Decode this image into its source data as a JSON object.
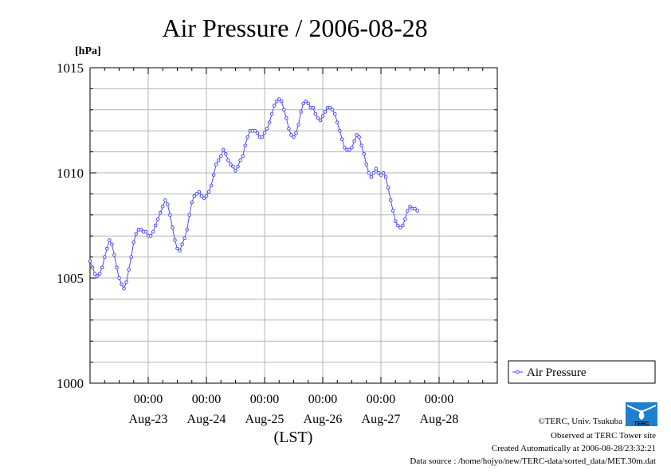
{
  "title": "Air Pressure / 2006-08-28",
  "unit_label": "[hPa]",
  "xaxis_caption": "(LST)",
  "x_time_label": "00:00",
  "legend_label": "Air Pressure",
  "credits": {
    "copyright": "©TERC, Univ. Tsukuba",
    "observed": "Observed at TERC Tower site",
    "created": "Created Automatically at 2006-08-28/23:32:21",
    "source": "Data source : /home/hojyo/new/TERC-data/sorted_data/MET.30m.dat"
  },
  "logo": {
    "text": "TERC",
    "color": "#1e7fd0"
  },
  "colors": {
    "series": "#4b4bff",
    "grid": "#b4b4b4",
    "frame": "#000000"
  },
  "chart_data": {
    "type": "line",
    "title": "Air Pressure / 2006-08-28",
    "xlabel": "(LST)",
    "ylabel": "[hPa]",
    "ylim": [
      1000,
      1015
    ],
    "yticks": [
      1000,
      1005,
      1010,
      1015
    ],
    "xlim": [
      "2006-08-22 00:00",
      "2006-08-29 00:00"
    ],
    "x_date_labels": [
      "Aug-23",
      "Aug-24",
      "Aug-25",
      "Aug-26",
      "Aug-27",
      "Aug-28"
    ],
    "grid": true,
    "legend": "right",
    "series": [
      {
        "name": "Air Pressure",
        "marker": "circle",
        "points": [
          [
            "2006-08-22 00:00",
            1005.8
          ],
          [
            "2006-08-22 01:00",
            1005.5
          ],
          [
            "2006-08-22 02:00",
            1005.2
          ],
          [
            "2006-08-22 03:00",
            1005.1
          ],
          [
            "2006-08-22 04:00",
            1005.2
          ],
          [
            "2006-08-22 05:00",
            1005.5
          ],
          [
            "2006-08-22 06:00",
            1006.0
          ],
          [
            "2006-08-22 07:00",
            1006.4
          ],
          [
            "2006-08-22 08:00",
            1006.8
          ],
          [
            "2006-08-22 09:00",
            1006.6
          ],
          [
            "2006-08-22 10:00",
            1006.1
          ],
          [
            "2006-08-22 11:00",
            1005.5
          ],
          [
            "2006-08-22 12:00",
            1005.0
          ],
          [
            "2006-08-22 13:00",
            1004.7
          ],
          [
            "2006-08-22 14:00",
            1004.5
          ],
          [
            "2006-08-22 15:00",
            1004.8
          ],
          [
            "2006-08-22 16:00",
            1005.4
          ],
          [
            "2006-08-22 17:00",
            1006.0
          ],
          [
            "2006-08-22 18:00",
            1006.7
          ],
          [
            "2006-08-22 19:00",
            1007.1
          ],
          [
            "2006-08-22 20:00",
            1007.3
          ],
          [
            "2006-08-22 21:00",
            1007.3
          ],
          [
            "2006-08-22 22:00",
            1007.2
          ],
          [
            "2006-08-22 23:00",
            1007.2
          ],
          [
            "2006-08-23 00:00",
            1007.0
          ],
          [
            "2006-08-23 01:00",
            1007.0
          ],
          [
            "2006-08-23 02:00",
            1007.2
          ],
          [
            "2006-08-23 03:00",
            1007.5
          ],
          [
            "2006-08-23 04:00",
            1007.8
          ],
          [
            "2006-08-23 05:00",
            1008.1
          ],
          [
            "2006-08-23 06:00",
            1008.4
          ],
          [
            "2006-08-23 07:00",
            1008.7
          ],
          [
            "2006-08-23 08:00",
            1008.5
          ],
          [
            "2006-08-23 09:00",
            1008.0
          ],
          [
            "2006-08-23 10:00",
            1007.4
          ],
          [
            "2006-08-23 11:00",
            1006.8
          ],
          [
            "2006-08-23 12:00",
            1006.4
          ],
          [
            "2006-08-23 13:00",
            1006.3
          ],
          [
            "2006-08-23 14:00",
            1006.6
          ],
          [
            "2006-08-23 15:00",
            1006.9
          ],
          [
            "2006-08-23 16:00",
            1007.3
          ],
          [
            "2006-08-23 17:00",
            1008.0
          ],
          [
            "2006-08-23 18:00",
            1008.6
          ],
          [
            "2006-08-23 19:00",
            1008.9
          ],
          [
            "2006-08-23 20:00",
            1009.0
          ],
          [
            "2006-08-23 21:00",
            1009.1
          ],
          [
            "2006-08-23 22:00",
            1008.9
          ],
          [
            "2006-08-23 23:00",
            1008.8
          ],
          [
            "2006-08-24 00:00",
            1008.9
          ],
          [
            "2006-08-24 01:00",
            1009.1
          ],
          [
            "2006-08-24 02:00",
            1009.4
          ],
          [
            "2006-08-24 03:00",
            1009.9
          ],
          [
            "2006-08-24 04:00",
            1010.4
          ],
          [
            "2006-08-24 05:00",
            1010.6
          ],
          [
            "2006-08-24 06:00",
            1010.8
          ],
          [
            "2006-08-24 07:00",
            1011.1
          ],
          [
            "2006-08-24 08:00",
            1010.9
          ],
          [
            "2006-08-24 09:00",
            1010.6
          ],
          [
            "2006-08-24 10:00",
            1010.4
          ],
          [
            "2006-08-24 11:00",
            1010.3
          ],
          [
            "2006-08-24 12:00",
            1010.1
          ],
          [
            "2006-08-24 13:00",
            1010.3
          ],
          [
            "2006-08-24 14:00",
            1010.6
          ],
          [
            "2006-08-24 15:00",
            1010.8
          ],
          [
            "2006-08-24 16:00",
            1011.3
          ],
          [
            "2006-08-24 17:00",
            1011.7
          ],
          [
            "2006-08-24 18:00",
            1012.0
          ],
          [
            "2006-08-24 19:00",
            1012.0
          ],
          [
            "2006-08-24 20:00",
            1012.0
          ],
          [
            "2006-08-24 21:00",
            1011.9
          ],
          [
            "2006-08-24 22:00",
            1011.7
          ],
          [
            "2006-08-24 23:00",
            1011.7
          ],
          [
            "2006-08-25 00:00",
            1011.9
          ],
          [
            "2006-08-25 01:00",
            1012.1
          ],
          [
            "2006-08-25 02:00",
            1012.4
          ],
          [
            "2006-08-25 03:00",
            1012.8
          ],
          [
            "2006-08-25 04:00",
            1013.2
          ],
          [
            "2006-08-25 05:00",
            1013.4
          ],
          [
            "2006-08-25 06:00",
            1013.5
          ],
          [
            "2006-08-25 07:00",
            1013.4
          ],
          [
            "2006-08-25 08:00",
            1013.0
          ],
          [
            "2006-08-25 09:00",
            1012.6
          ],
          [
            "2006-08-25 10:00",
            1012.1
          ],
          [
            "2006-08-25 11:00",
            1011.8
          ],
          [
            "2006-08-25 12:00",
            1011.7
          ],
          [
            "2006-08-25 13:00",
            1011.9
          ],
          [
            "2006-08-25 14:00",
            1012.3
          ],
          [
            "2006-08-25 15:00",
            1012.9
          ],
          [
            "2006-08-25 16:00",
            1013.3
          ],
          [
            "2006-08-25 17:00",
            1013.4
          ],
          [
            "2006-08-25 18:00",
            1013.3
          ],
          [
            "2006-08-25 19:00",
            1013.1
          ],
          [
            "2006-08-25 20:00",
            1013.1
          ],
          [
            "2006-08-25 21:00",
            1012.8
          ],
          [
            "2006-08-25 22:00",
            1012.6
          ],
          [
            "2006-08-25 23:00",
            1012.5
          ],
          [
            "2006-08-26 00:00",
            1012.7
          ],
          [
            "2006-08-26 01:00",
            1012.9
          ],
          [
            "2006-08-26 02:00",
            1013.1
          ],
          [
            "2006-08-26 03:00",
            1013.1
          ],
          [
            "2006-08-26 04:00",
            1013.0
          ],
          [
            "2006-08-26 05:00",
            1012.8
          ],
          [
            "2006-08-26 06:00",
            1012.4
          ],
          [
            "2006-08-26 07:00",
            1012.0
          ],
          [
            "2006-08-26 08:00",
            1011.6
          ],
          [
            "2006-08-26 09:00",
            1011.2
          ],
          [
            "2006-08-26 10:00",
            1011.1
          ],
          [
            "2006-08-26 11:00",
            1011.1
          ],
          [
            "2006-08-26 12:00",
            1011.2
          ],
          [
            "2006-08-26 13:00",
            1011.5
          ],
          [
            "2006-08-26 14:00",
            1011.8
          ],
          [
            "2006-08-26 15:00",
            1011.7
          ],
          [
            "2006-08-26 16:00",
            1011.3
          ],
          [
            "2006-08-26 17:00",
            1010.9
          ],
          [
            "2006-08-26 18:00",
            1010.4
          ],
          [
            "2006-08-26 19:00",
            1010.0
          ],
          [
            "2006-08-26 20:00",
            1009.8
          ],
          [
            "2006-08-26 21:00",
            1010.0
          ],
          [
            "2006-08-26 22:00",
            1010.2
          ],
          [
            "2006-08-26 23:00",
            1010.0
          ],
          [
            "2006-08-27 00:00",
            1009.9
          ],
          [
            "2006-08-27 01:00",
            1010.0
          ],
          [
            "2006-08-27 02:00",
            1009.8
          ],
          [
            "2006-08-27 03:00",
            1009.3
          ],
          [
            "2006-08-27 04:00",
            1008.7
          ],
          [
            "2006-08-27 05:00",
            1008.2
          ],
          [
            "2006-08-27 06:00",
            1007.7
          ],
          [
            "2006-08-27 07:00",
            1007.5
          ],
          [
            "2006-08-27 08:00",
            1007.4
          ],
          [
            "2006-08-27 09:00",
            1007.5
          ],
          [
            "2006-08-27 10:00",
            1007.8
          ],
          [
            "2006-08-27 11:00",
            1008.2
          ],
          [
            "2006-08-27 12:00",
            1008.4
          ],
          [
            "2006-08-27 13:00",
            1008.3
          ],
          [
            "2006-08-27 14:00",
            1008.3
          ],
          [
            "2006-08-27 15:00",
            1008.2
          ]
        ]
      }
    ]
  }
}
